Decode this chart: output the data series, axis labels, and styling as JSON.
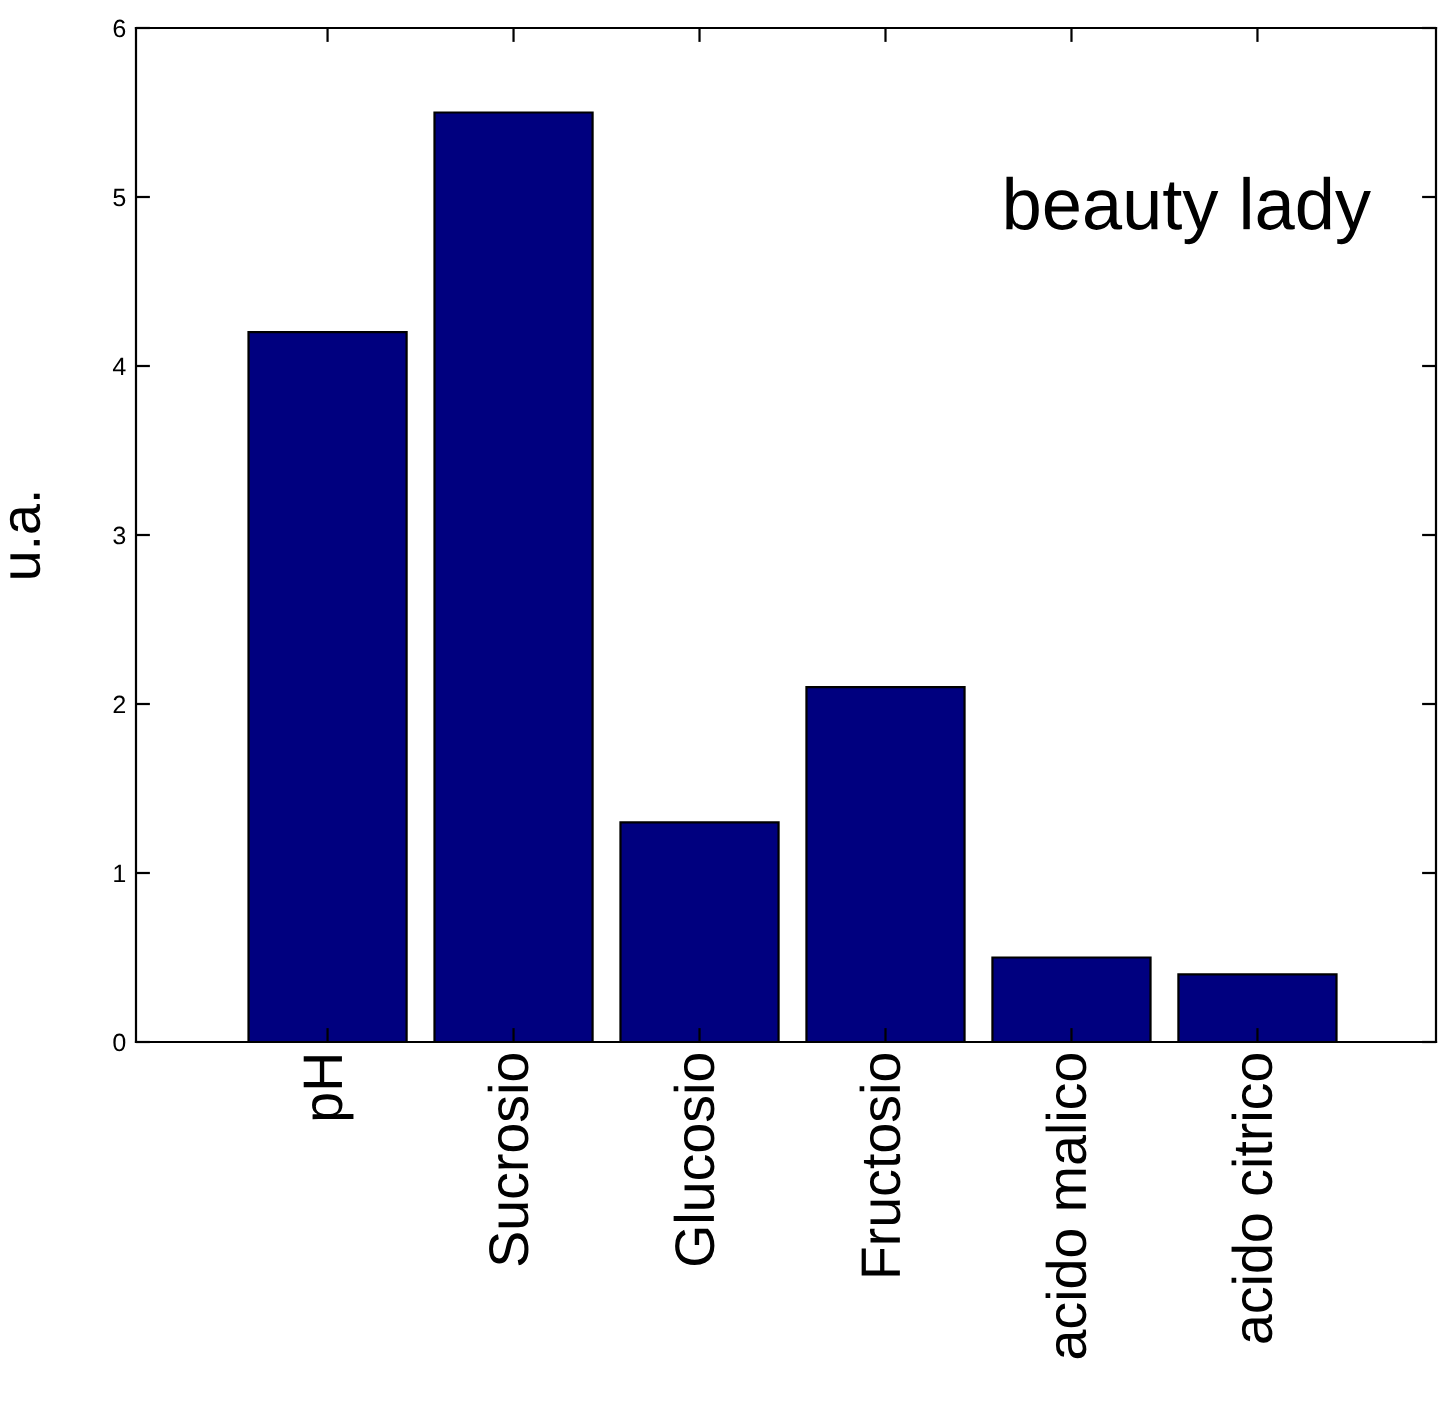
{
  "chart_data": {
    "type": "bar",
    "ylabel": "u.a.",
    "categories": [
      "pH",
      "Sucrosio",
      "Glucosio",
      "Fructosio",
      "acido malico",
      "acido citrico"
    ],
    "values": [
      4.2,
      5.5,
      1.3,
      2.1,
      0.5,
      0.4
    ],
    "color": "#00007f",
    "ylim": [
      0,
      6
    ],
    "yticks": [
      0,
      1,
      2,
      3,
      4,
      5,
      6
    ],
    "grid": false,
    "annotations": [
      "beauty lady"
    ]
  }
}
